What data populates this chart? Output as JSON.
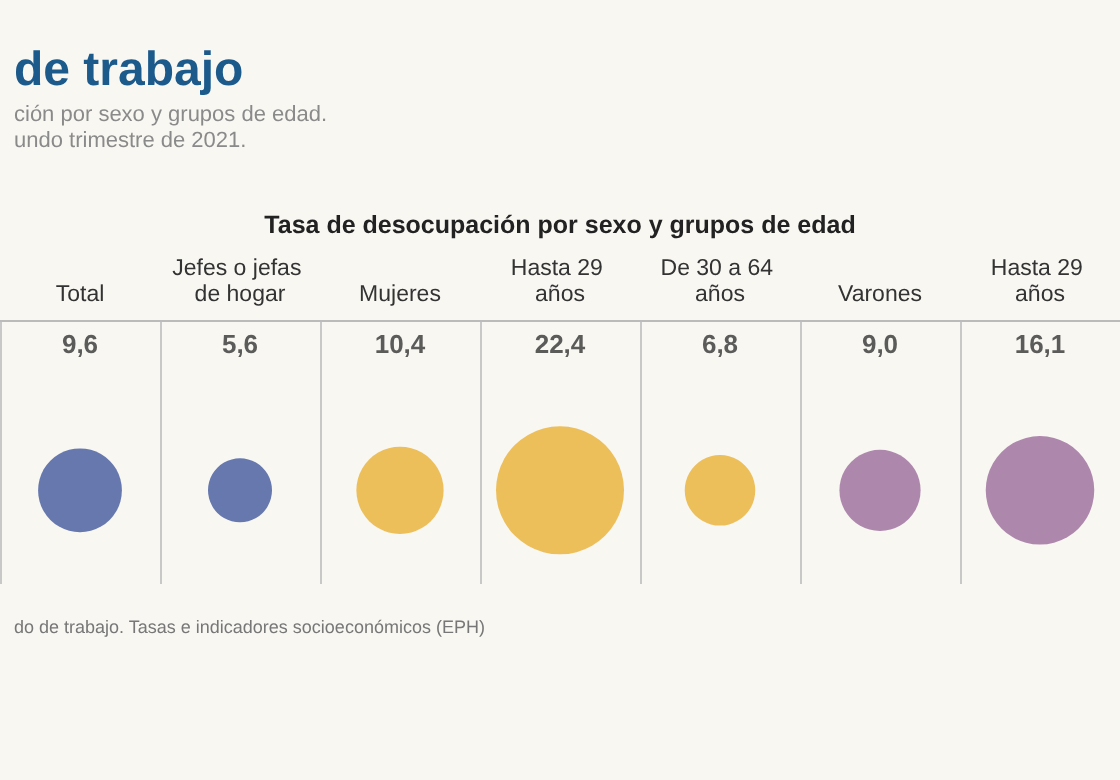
{
  "chart_data": {
    "type": "other",
    "title": "de trabajo",
    "subtitle": "ción por sexo y grupos de edad.\nundo trimestre de 2021.",
    "annotations": [
      "Tasa de desocupación por sexo y grupos de edad",
      "do de trabajo. Tasas e indicadores socioeconómicos (EPH)"
    ],
    "categories": [
      "Total",
      "Jefes o jefas de hogar",
      "Mujeres",
      "Hasta 29 años",
      "De 30 a 64 años",
      "Varones",
      "Hasta 29 años"
    ],
    "values": [
      9.6,
      5.6,
      10.4,
      22.4,
      6.8,
      9.0,
      16.1
    ],
    "value_labels": [
      "9,6",
      "5,6",
      "10,4",
      "22,4",
      "6,8",
      "9,0",
      "16,1"
    ],
    "colors": [
      "#41589b",
      "#41589b",
      "#e8b035",
      "#e8b035",
      "#e8b035",
      "#9b6a9b",
      "#9b6a9b"
    ]
  }
}
